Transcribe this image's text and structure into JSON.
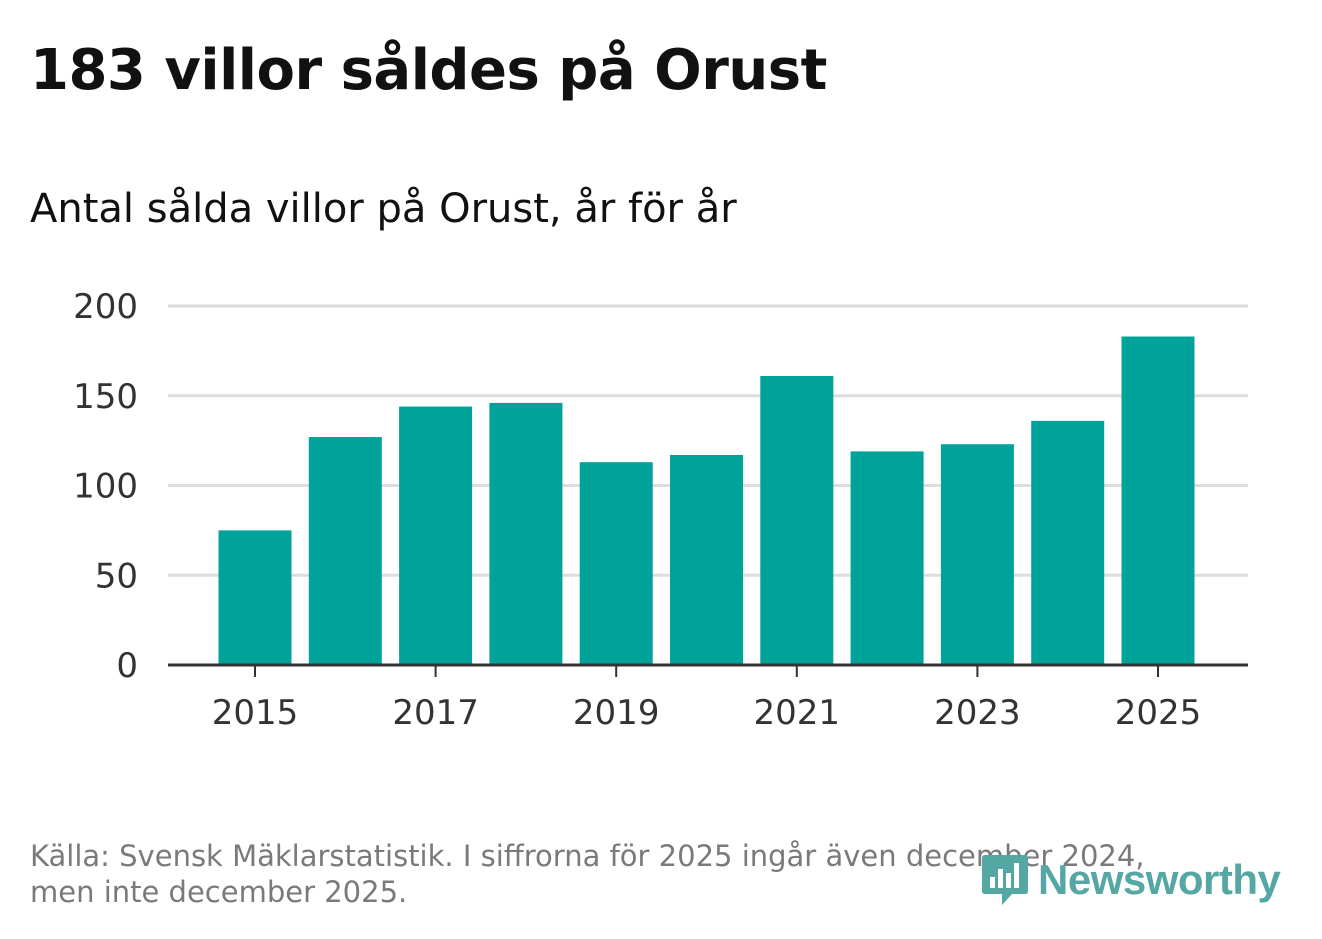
{
  "title": "183 villor såldes på Orust",
  "footer": {
    "line1": "Källa: Svensk Mäklarstatistik. I siffrorna för 2025 ingår även december 2024,",
    "line2": "men inte december 2025."
  },
  "brand": {
    "name": "Newsworthy",
    "icon": "newsworthy-logo-icon",
    "color": "#55a7a4"
  },
  "colors": {
    "bar": "#00a39a",
    "grid": "#dddddd",
    "axis": "#333333",
    "text": "#111111",
    "tick_text": "#333333"
  },
  "chart_data": {
    "type": "bar",
    "title": "183 villor såldes på Orust",
    "subtitle": "Antal sålda villor på Orust, år för år",
    "xlabel": "",
    "ylabel": "",
    "categories": [
      "2015",
      "2016",
      "2017",
      "2018",
      "2019",
      "2020",
      "2021",
      "2022",
      "2023",
      "2024",
      "2025"
    ],
    "values": [
      75,
      127,
      144,
      146,
      113,
      117,
      161,
      119,
      123,
      136,
      183
    ],
    "x_tick_labels": [
      "2015",
      "2017",
      "2019",
      "2021",
      "2023",
      "2025"
    ],
    "y_ticks": [
      0,
      50,
      100,
      150,
      200
    ],
    "ylim": [
      0,
      200
    ],
    "grid": true,
    "legend": "none"
  }
}
